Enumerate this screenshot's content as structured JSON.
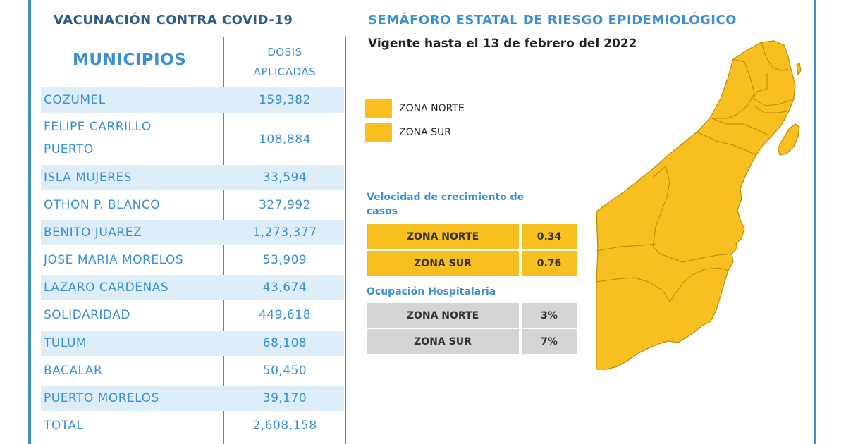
{
  "left": {
    "title": "VACUNACIÓN CONTRA COVID-19",
    "header_municipios": "MUNICIPIOS",
    "header_dosis_line1": "DOSIS",
    "header_dosis_line2": "APLICADAS",
    "rows": [
      {
        "name": "COZUMEL",
        "value": "159,382"
      },
      {
        "name": "FELIPE CARRILLO",
        "name2": "PUERTO",
        "value": "108,884"
      },
      {
        "name": "ISLA MUJERES",
        "value": "33,594"
      },
      {
        "name": "OTHON P. BLANCO",
        "value": "327,992"
      },
      {
        "name": "BENITO JUAREZ",
        "value": "1,273,377"
      },
      {
        "name": "JOSE MARIA MORELOS",
        "value": "53,909"
      },
      {
        "name": "LAZARO CARDENAS",
        "value": "43,674"
      },
      {
        "name": "SOLIDARIDAD",
        "value": "449,618"
      },
      {
        "name": "TULUM",
        "value": "68,108"
      },
      {
        "name": "BACALAR",
        "value": "50,450"
      },
      {
        "name": "PUERTO MORELOS",
        "value": "39,170"
      },
      {
        "name": "TOTAL",
        "value": "2,608,158"
      }
    ]
  },
  "right": {
    "title": "SEMÁFORO ESTATAL DE RIESGO EPIDEMIOLÓGICO",
    "subtitle": "Vigente hasta el 13 de febrero del 2022",
    "legend": [
      {
        "label": "ZONA NORTE",
        "color": "#f7bf1f"
      },
      {
        "label": "ZONA SUR",
        "color": "#f7bf1f"
      }
    ],
    "velocidad_title_line1": "Velocidad de crecimiento de",
    "velocidad_title_line2": "casos",
    "velocidad": [
      {
        "zona": "ZONA NORTE",
        "value": "0.34"
      },
      {
        "zona": "ZONA SUR",
        "value": "0.76"
      }
    ],
    "ocupacion_title": "Ocupación Hospitalaria",
    "ocupacion": [
      {
        "zona": "ZONA NORTE",
        "value": "3%"
      },
      {
        "zona": "ZONA SUR",
        "value": "7%"
      }
    ],
    "map_color": "#f7bf1f"
  }
}
